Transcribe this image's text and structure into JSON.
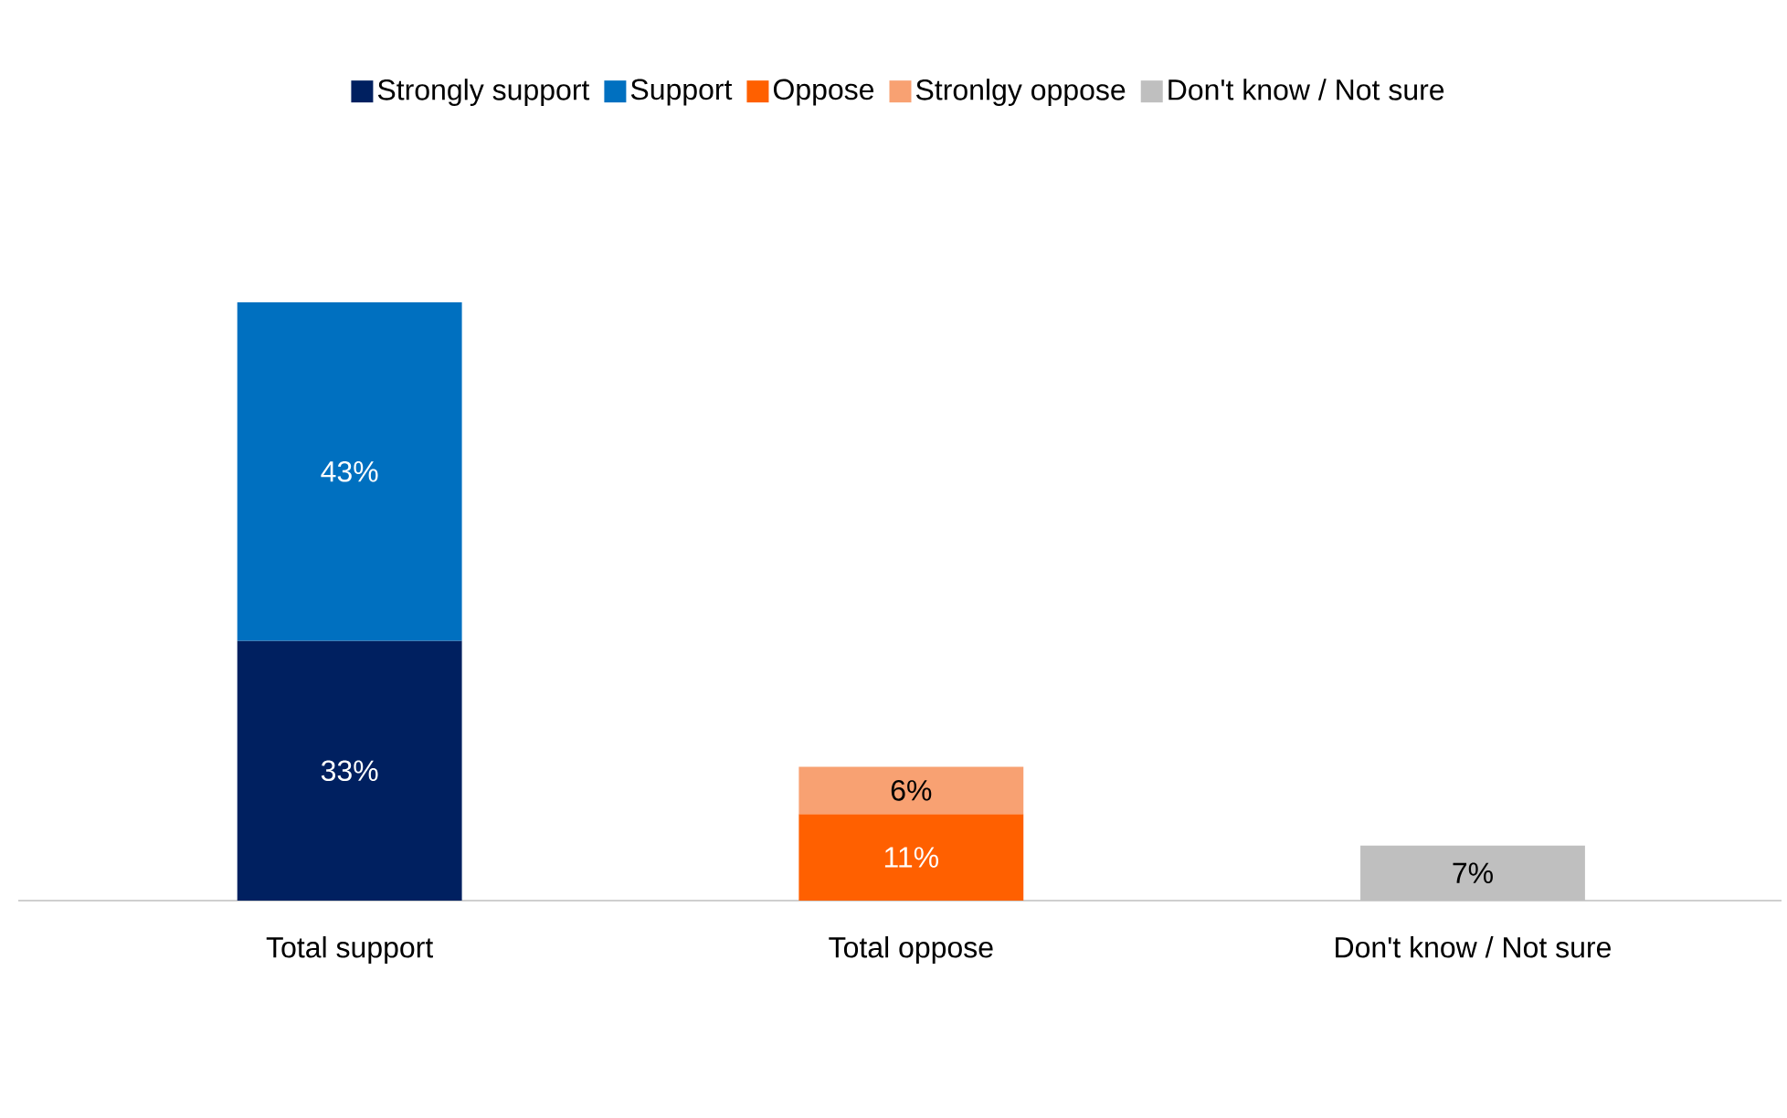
{
  "chart_data": {
    "type": "bar",
    "stacked": true,
    "legend": "top",
    "categories": [
      "Total support",
      "Total oppose",
      "Don't know / Not sure"
    ],
    "series": [
      {
        "name": "Strongly support",
        "color": "#002060",
        "values": [
          33,
          null,
          null
        ],
        "value_labels": [
          "33%",
          null,
          null
        ]
      },
      {
        "name": "Support",
        "color": "#0070c0",
        "values": [
          43,
          null,
          null
        ],
        "value_labels": [
          "43%",
          null,
          null
        ]
      },
      {
        "name": "Oppose",
        "color": "#ff6000",
        "values": [
          null,
          11,
          null
        ],
        "value_labels": [
          null,
          "11%",
          null
        ]
      },
      {
        "name": "Stronlgy oppose",
        "color": "#f8a172",
        "values": [
          null,
          6,
          null
        ],
        "value_labels": [
          null,
          "6%",
          null
        ]
      },
      {
        "name": "Don't know / Not sure",
        "color": "#bfbfbf",
        "values": [
          null,
          null,
          7
        ],
        "value_labels": [
          null,
          null,
          "7%"
        ]
      }
    ]
  }
}
